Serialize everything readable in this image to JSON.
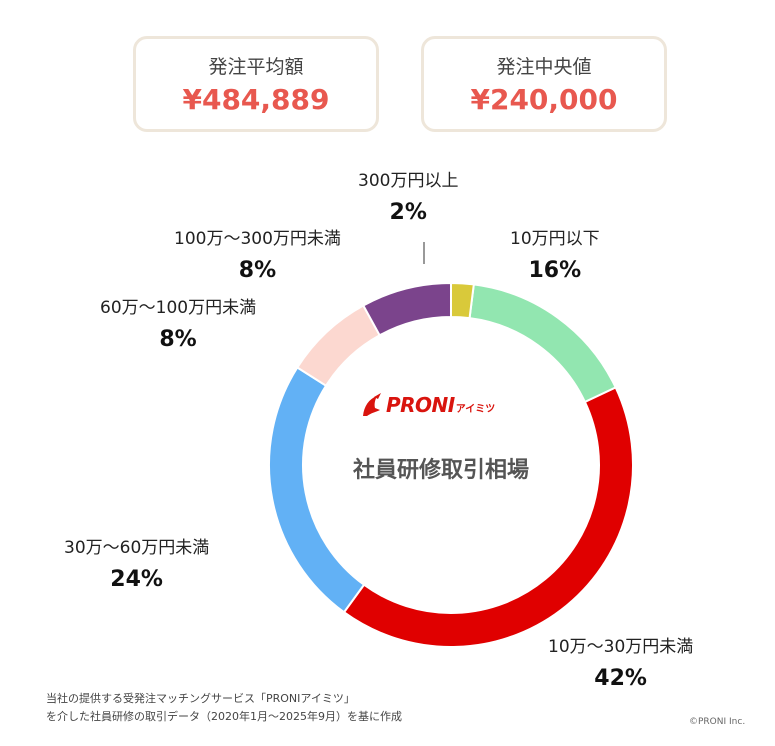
{
  "stats": {
    "average": {
      "label": "発注平均額",
      "value": "¥484,889"
    },
    "median": {
      "label": "発注中央値",
      "value": "¥240,000"
    }
  },
  "chart_data": {
    "type": "pie",
    "variant": "donut",
    "center_title": "社員研修取引相場",
    "categories": [
      "10万円以下",
      "10万〜30万円未満",
      "30万〜60万円未満",
      "60万〜100万円未満",
      "100万〜300万円未満",
      "300万円以上"
    ],
    "values": [
      16,
      42,
      24,
      8,
      8,
      2
    ],
    "labels": [
      "16%",
      "42%",
      "24%",
      "8%",
      "8%",
      "2%"
    ],
    "colors": [
      "#92e6b0",
      "#e00000",
      "#62b1f5",
      "#fcd8d0",
      "#7b448c",
      "#d9c93a"
    ]
  },
  "logo": {
    "text": "PRONI",
    "sub": "アイミツ"
  },
  "footnote": {
    "line1": "当社の提供する受発注マッチングサービス「PRONIアイミツ」",
    "line2": "を介した社員研修の取引データ（2020年1月〜2025年9月）を基に作成"
  },
  "copyright": "©PRONI Inc."
}
